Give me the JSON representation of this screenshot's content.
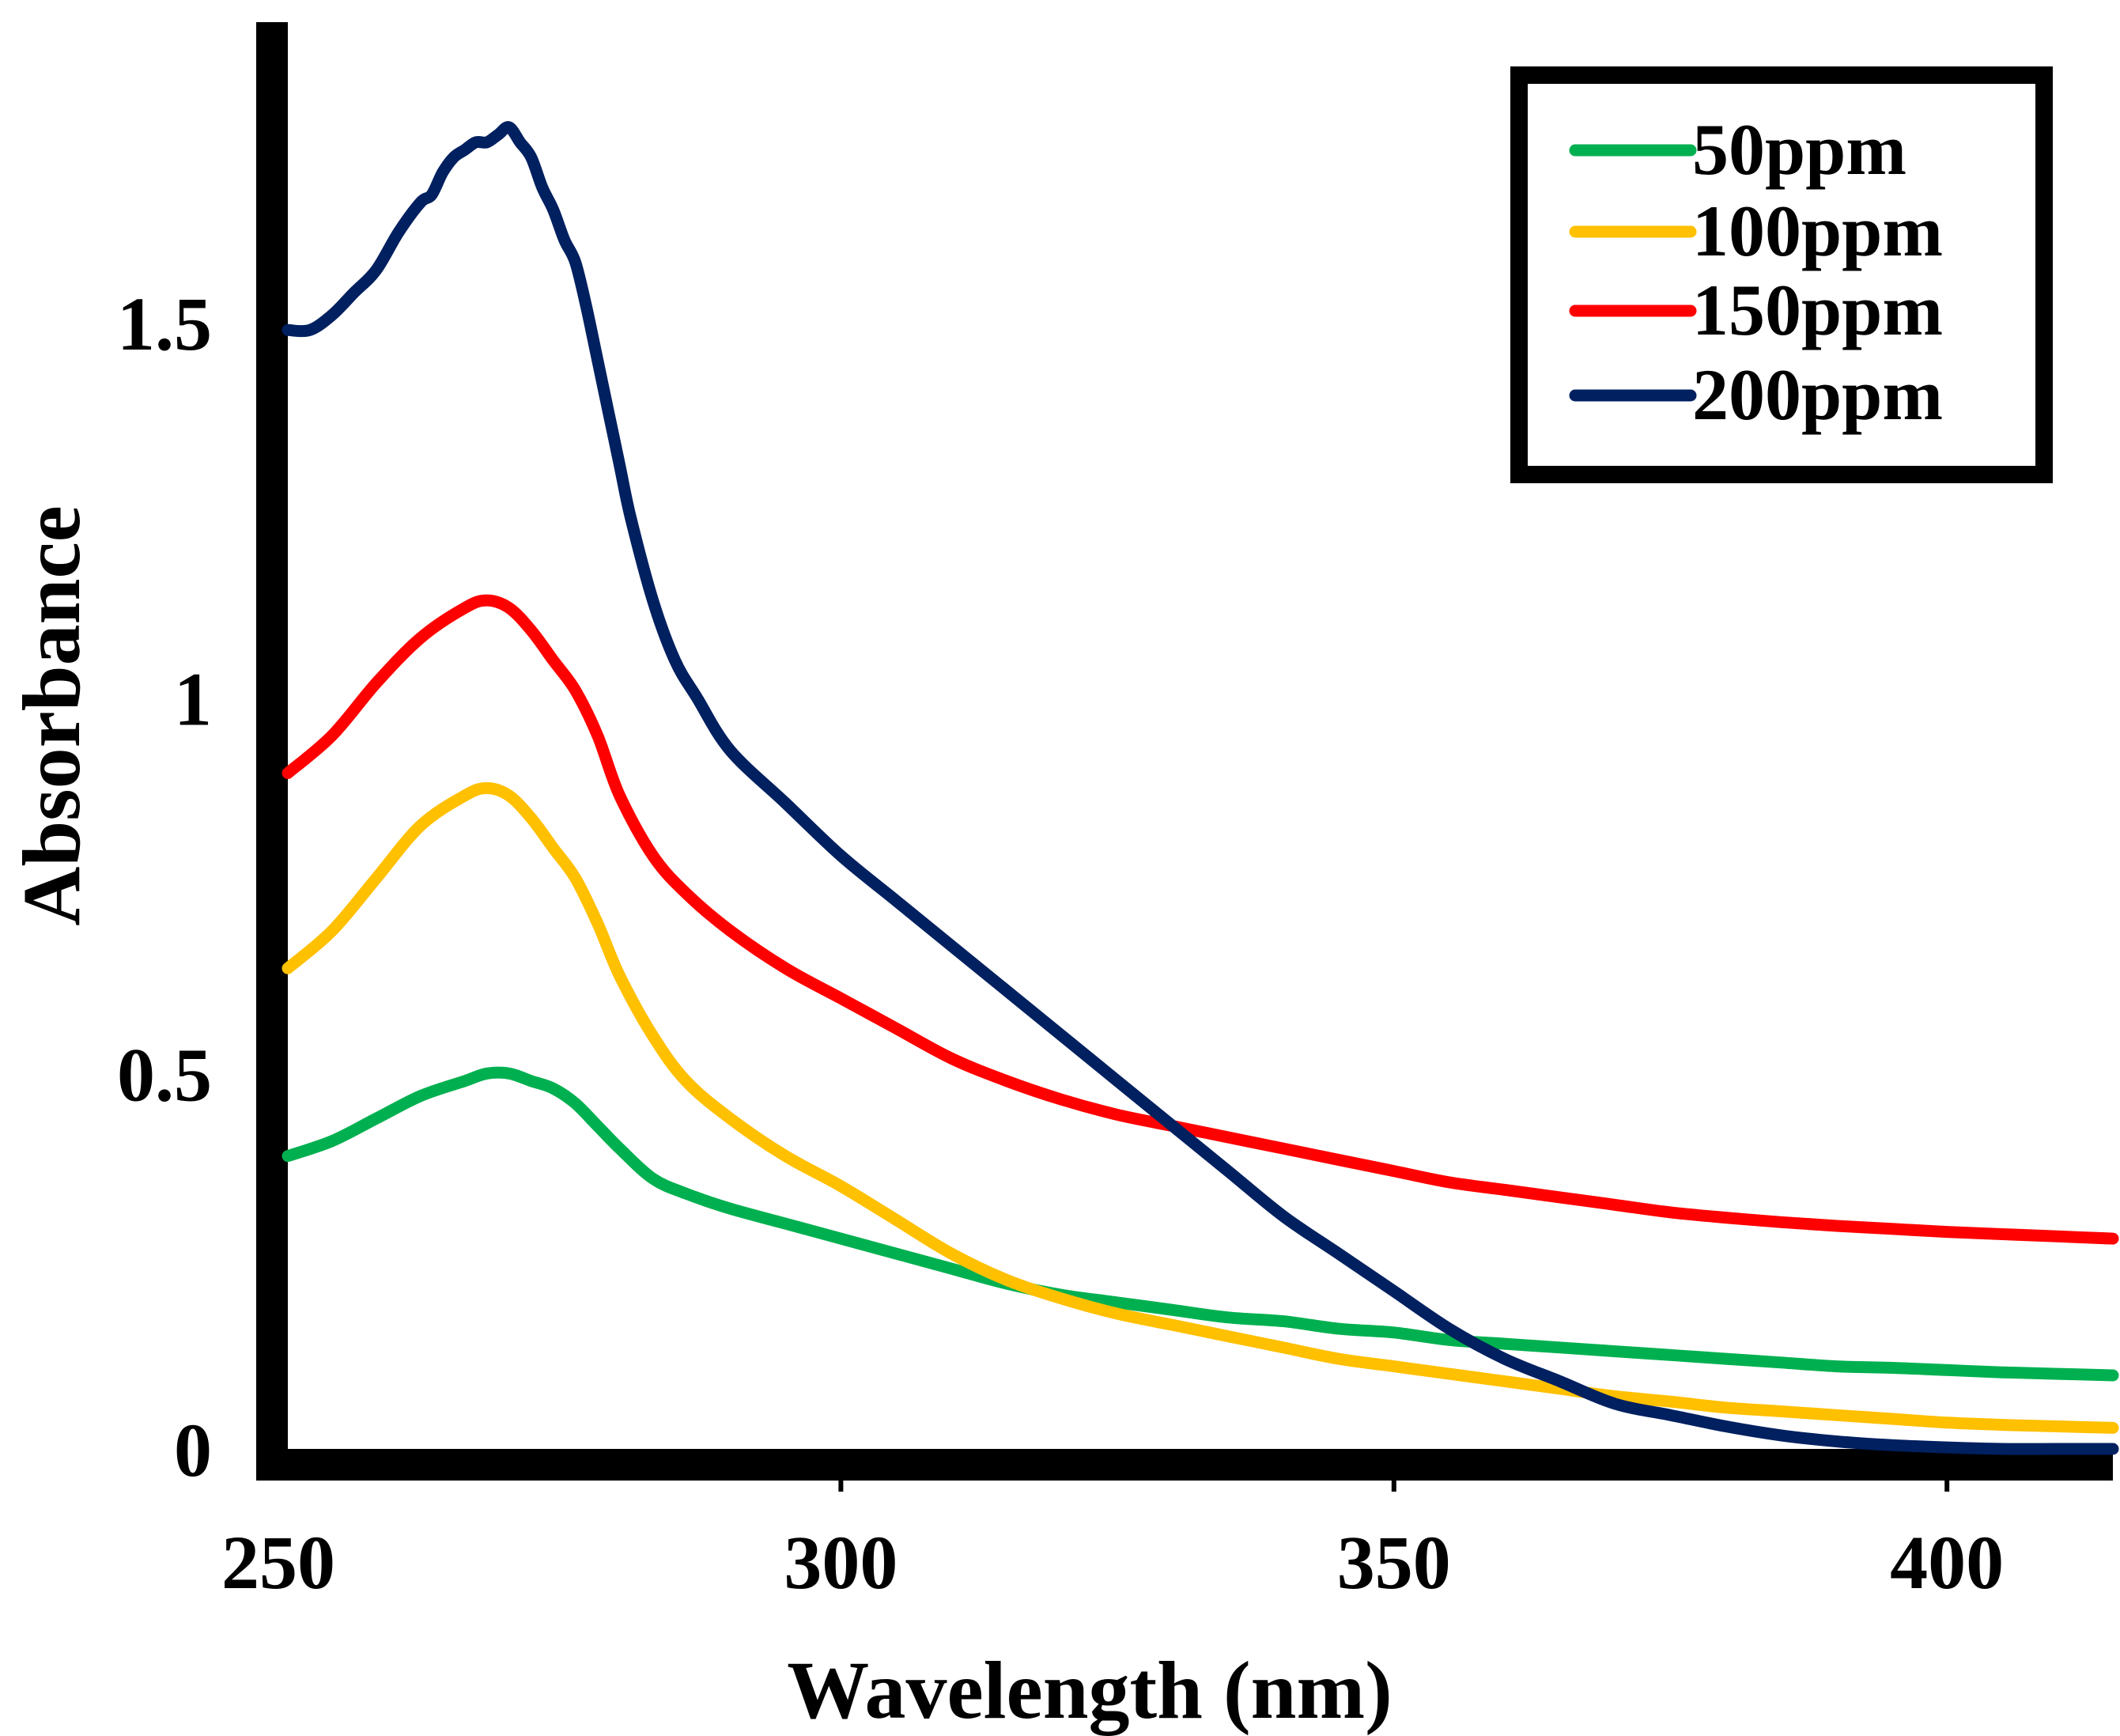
{
  "chart_data": {
    "type": "line",
    "title": "",
    "xlabel": "Wavelength (nm)",
    "ylabel": "Absorbance",
    "xlim": [
      250,
      415
    ],
    "ylim": [
      0,
      1.9
    ],
    "xticks": [
      250,
      300,
      350,
      400
    ],
    "yticks": [
      0,
      0.5,
      1,
      1.5
    ],
    "xtick_labels": [
      "250",
      "300",
      "350",
      "400"
    ],
    "ytick_labels": [
      "0",
      "0.5",
      "1",
      "1.5"
    ],
    "grid": false,
    "legend_position": "top-right",
    "series": [
      {
        "name": "50ppm",
        "color": "#00B050",
        "x": [
          250,
          254,
          258,
          262,
          266,
          268,
          270,
          272,
          274,
          276,
          278,
          280,
          283,
          286,
          290,
          295,
          300,
          305,
          310,
          315,
          320,
          325,
          330,
          335,
          340,
          345,
          350,
          355,
          360,
          365,
          370,
          375,
          380,
          385,
          390,
          395,
          400,
          405,
          410,
          415
        ],
        "y": [
          0.39,
          0.41,
          0.44,
          0.47,
          0.49,
          0.5,
          0.5,
          0.49,
          0.48,
          0.46,
          0.43,
          0.4,
          0.36,
          0.34,
          0.32,
          0.3,
          0.28,
          0.26,
          0.24,
          0.22,
          0.205,
          0.195,
          0.185,
          0.175,
          0.17,
          0.16,
          0.155,
          0.145,
          0.14,
          0.135,
          0.13,
          0.125,
          0.12,
          0.115,
          0.11,
          0.108,
          0.105,
          0.102,
          0.1,
          0.098
        ]
      },
      {
        "name": "100ppm",
        "color": "#FFC000",
        "x": [
          250,
          254,
          258,
          262,
          266,
          268,
          270,
          272,
          274,
          276,
          278,
          280,
          283,
          286,
          290,
          295,
          300,
          305,
          310,
          315,
          320,
          325,
          330,
          335,
          340,
          345,
          350,
          355,
          360,
          365,
          370,
          375,
          380,
          385,
          390,
          395,
          400,
          405,
          410,
          415
        ],
        "y": [
          0.64,
          0.69,
          0.76,
          0.83,
          0.87,
          0.88,
          0.87,
          0.84,
          0.8,
          0.76,
          0.7,
          0.63,
          0.55,
          0.49,
          0.44,
          0.39,
          0.35,
          0.305,
          0.26,
          0.225,
          0.2,
          0.18,
          0.165,
          0.15,
          0.135,
          0.12,
          0.11,
          0.1,
          0.09,
          0.08,
          0.07,
          0.063,
          0.055,
          0.05,
          0.045,
          0.04,
          0.035,
          0.032,
          0.03,
          0.028
        ]
      },
      {
        "name": "150ppm",
        "color": "#FF0000",
        "x": [
          250,
          254,
          258,
          262,
          266,
          268,
          270,
          272,
          274,
          276,
          278,
          280,
          283,
          286,
          290,
          295,
          300,
          305,
          310,
          315,
          320,
          325,
          330,
          335,
          340,
          345,
          350,
          355,
          360,
          365,
          370,
          375,
          380,
          385,
          390,
          395,
          400,
          405,
          410,
          415
        ],
        "y": [
          0.9,
          0.95,
          1.02,
          1.08,
          1.12,
          1.13,
          1.12,
          1.09,
          1.05,
          1.01,
          0.95,
          0.87,
          0.79,
          0.74,
          0.69,
          0.64,
          0.6,
          0.56,
          0.52,
          0.49,
          0.465,
          0.445,
          0.43,
          0.415,
          0.4,
          0.385,
          0.37,
          0.355,
          0.345,
          0.335,
          0.325,
          0.315,
          0.308,
          0.302,
          0.297,
          0.293,
          0.289,
          0.286,
          0.283,
          0.28
        ]
      },
      {
        "name": "200ppm",
        "color": "#002060",
        "x": [
          250,
          252,
          254,
          256,
          258,
          260,
          262,
          263,
          264,
          265,
          266,
          267,
          268,
          269,
          270,
          271,
          272,
          273,
          274,
          275,
          276,
          277,
          278,
          279,
          280,
          281,
          283,
          285,
          287,
          290,
          295,
          300,
          305,
          310,
          315,
          320,
          325,
          330,
          335,
          340,
          345,
          350,
          355,
          360,
          365,
          370,
          375,
          380,
          385,
          390,
          395,
          400,
          405,
          410,
          415
        ],
        "y": [
          1.49,
          1.49,
          1.51,
          1.54,
          1.57,
          1.62,
          1.66,
          1.67,
          1.7,
          1.72,
          1.73,
          1.74,
          1.74,
          1.75,
          1.76,
          1.74,
          1.72,
          1.68,
          1.65,
          1.61,
          1.58,
          1.52,
          1.45,
          1.38,
          1.31,
          1.24,
          1.13,
          1.05,
          1.0,
          0.93,
          0.86,
          0.79,
          0.73,
          0.67,
          0.61,
          0.55,
          0.49,
          0.43,
          0.37,
          0.31,
          0.26,
          0.21,
          0.16,
          0.12,
          0.09,
          0.06,
          0.045,
          0.03,
          0.018,
          0.01,
          0.005,
          0.002,
          0.0,
          0.0,
          0.0
        ]
      }
    ]
  }
}
